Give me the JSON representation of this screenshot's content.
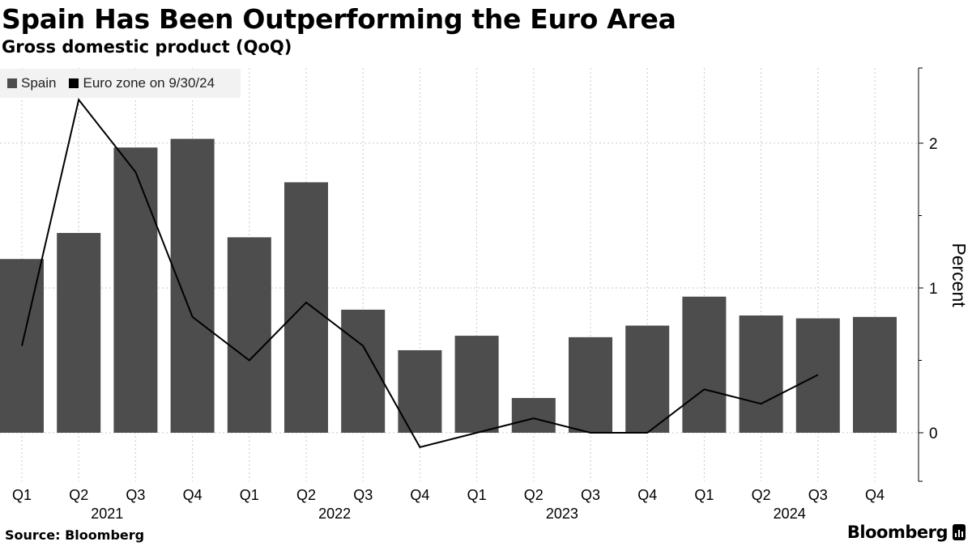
{
  "header": {
    "title": "Spain Has Been Outperforming the Euro Area",
    "subtitle": "Gross domestic product (QoQ)"
  },
  "footer": {
    "source": "Source: Bloomberg",
    "brand": "Bloomberg"
  },
  "colors": {
    "bar": "#4d4d4d",
    "line": "#000000",
    "grid": "#c8c8c8",
    "legend_bg": "#f2f2f2"
  },
  "chart_data": {
    "type": "bar",
    "categories": [
      "Q1",
      "Q2",
      "Q3",
      "Q4",
      "Q1",
      "Q2",
      "Q3",
      "Q4",
      "Q1",
      "Q2",
      "Q3",
      "Q4",
      "Q1",
      "Q2",
      "Q3",
      "Q4"
    ],
    "years": [
      {
        "label": "2021",
        "span": [
          0,
          3
        ]
      },
      {
        "label": "2022",
        "span": [
          4,
          7
        ]
      },
      {
        "label": "2023",
        "span": [
          8,
          11
        ]
      },
      {
        "label": "2024",
        "span": [
          12,
          15
        ]
      }
    ],
    "series": [
      {
        "name": "Spain",
        "kind": "bar",
        "values": [
          1.2,
          1.38,
          1.97,
          2.03,
          1.35,
          1.73,
          0.85,
          0.57,
          0.67,
          0.24,
          0.66,
          0.74,
          0.94,
          0.81,
          0.79,
          0.8
        ]
      },
      {
        "name": "Euro zone on 9/30/24",
        "kind": "line",
        "values": [
          0.6,
          2.3,
          1.8,
          0.8,
          0.5,
          0.9,
          0.6,
          -0.1,
          0.0,
          0.1,
          0.0,
          0.0,
          0.3,
          0.2,
          0.4,
          null
        ]
      }
    ],
    "ylabel": "Percent",
    "ylim": [
      -0.32,
      2.52
    ],
    "yticks": [
      0,
      1,
      2
    ],
    "grid": true,
    "legend_position": "top-left"
  }
}
